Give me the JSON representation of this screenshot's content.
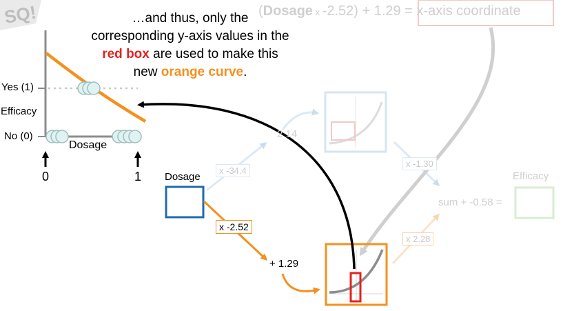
{
  "caption": {
    "line1": "…and thus, only the",
    "line2": "corresponding y-axis values in the",
    "red_word": "red box",
    "line3_rest": " are used to make this",
    "line4_pre": "new ",
    "orange_word": "orange curve",
    "line4_post": "."
  },
  "formula": {
    "paren_open": "(",
    "bold_word": "Dosage",
    "times": " x ",
    "weight": "-2.52",
    "rest": ") + 1.29 = x-axis coordinate"
  },
  "plot": {
    "yes_label": "Yes (1)",
    "no_label": "No (0)",
    "y_axis_label": "Efficacy",
    "x_axis_label": "Dosage",
    "tick_0": "0",
    "tick_1": "1"
  },
  "network": {
    "input_label": "Dosage",
    "weight_bottom": "x -2.52",
    "bias_bottom": "+ 1.29",
    "weight_top": "x -34.4",
    "bias_top": "2.14",
    "weight_top_out": "x -1.30",
    "weight_bottom_out": "x 2.28",
    "sum_label": "sum + -0.58 =",
    "output_label": "Efficacy"
  },
  "colors": {
    "orange": "#f5901e",
    "red": "#e0231f",
    "blue": "#1f6ab0",
    "gray": "#8c8c8c"
  }
}
